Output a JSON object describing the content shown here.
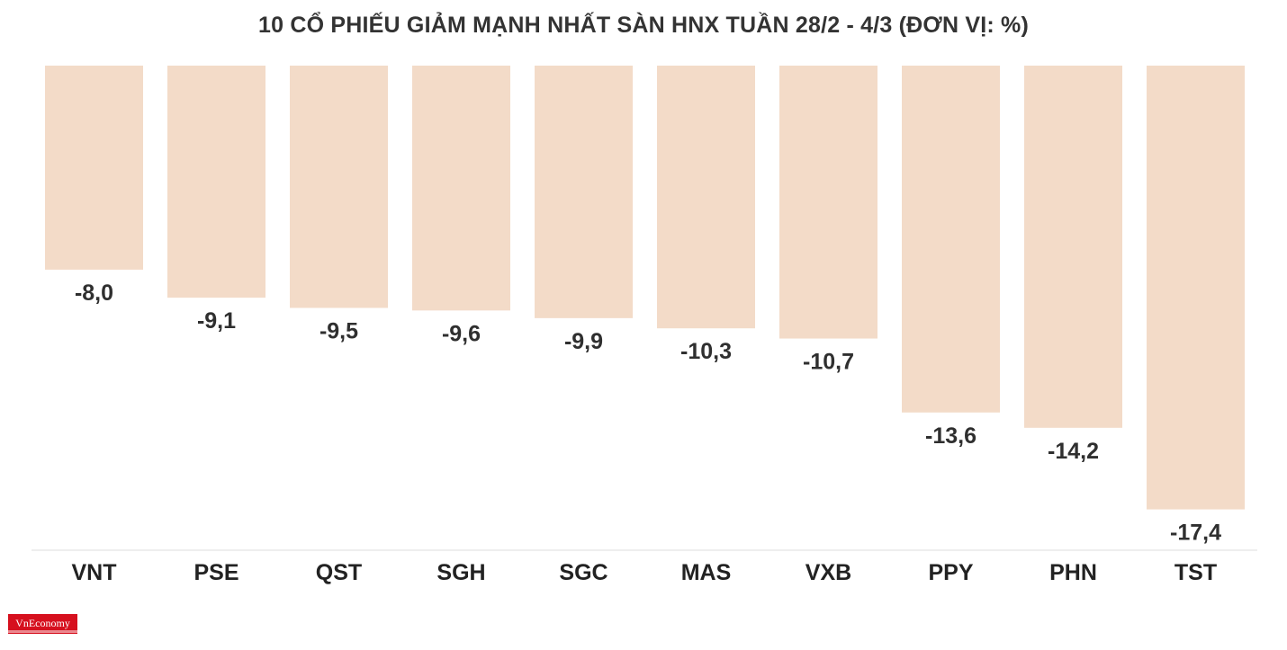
{
  "chart_data": {
    "type": "bar",
    "title": "10 CỔ PHIẾU GIẢM MẠNH NHẤT SÀN HNX TUẦN 28/2 - 4/3 (ĐƠN VỊ: %)",
    "categories": [
      "VNT",
      "PSE",
      "QST",
      "SGH",
      "SGC",
      "MAS",
      "VXB",
      "PPY",
      "PHN",
      "TST"
    ],
    "values": [
      -8.0,
      -9.1,
      -9.5,
      -9.6,
      -9.9,
      -10.3,
      -10.7,
      -13.6,
      -14.2,
      -17.4
    ],
    "value_labels": [
      "-8,0",
      "-9,1",
      "-9,5",
      "-9,6",
      "-9,9",
      "-10,3",
      "-10,7",
      "-13,6",
      "-14,2",
      "-17,4"
    ],
    "ylim": [
      -19,
      0
    ],
    "grid": false,
    "xlabel": "",
    "ylabel": "",
    "bar_color": "#f3dbc8",
    "axis_color": "#dddddd"
  },
  "branding": {
    "logo_text": "VnEconomy",
    "logo_color": "#d6101e"
  }
}
